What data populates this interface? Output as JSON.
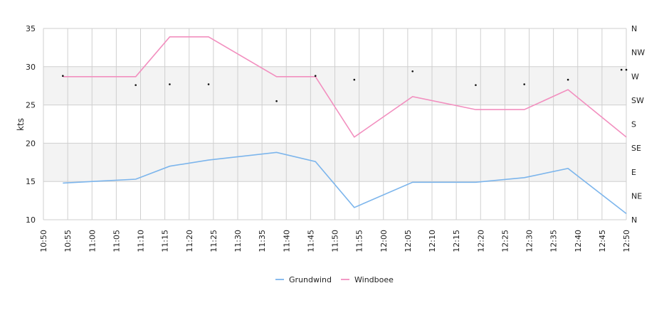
{
  "chart_data": {
    "type": "line",
    "x_labels": [
      "10:50",
      "10:55",
      "11:00",
      "11:05",
      "11:10",
      "11:15",
      "11:20",
      "11:25",
      "11:30",
      "11:35",
      "11:40",
      "11:45",
      "11:50",
      "11:55",
      "12:00",
      "12:05",
      "12:10",
      "12:15",
      "12:20",
      "12:25",
      "12:30",
      "12:35",
      "12:40",
      "12:45",
      "12:50"
    ],
    "y_label": "kts",
    "y_ticks": [
      10,
      15,
      20,
      25,
      30,
      35
    ],
    "y_lim": [
      10,
      35
    ],
    "x_lim_minutes_after_first_label": [
      0,
      120
    ],
    "right_axis_labels": [
      "N",
      "NW",
      "W",
      "SW",
      "S",
      "SE",
      "E",
      "NE",
      "N"
    ],
    "banded_ranges": [
      [
        15,
        20
      ],
      [
        25,
        30
      ]
    ],
    "x_times": [
      "10:54",
      "11:09",
      "11:16",
      "11:24",
      "11:38",
      "11:46",
      "11:54",
      "12:06",
      "12:19",
      "12:29",
      "12:38",
      "12:50"
    ],
    "series": [
      {
        "name": "Grundwind",
        "color": "#7cb5ec",
        "values": [
          14.8,
          15.3,
          17.0,
          17.8,
          18.8,
          17.6,
          11.6,
          14.9,
          14.9,
          15.5,
          16.7,
          10.8
        ]
      },
      {
        "name": "Windboee",
        "color": "#f28fbf",
        "values": [
          28.7,
          28.7,
          33.9,
          33.9,
          28.7,
          28.7,
          20.8,
          26.1,
          24.4,
          24.4,
          27.0,
          20.8
        ]
      }
    ],
    "direction_markers": {
      "x_times": [
        "10:54",
        "11:09",
        "11:16",
        "11:24",
        "11:38",
        "11:46",
        "11:54",
        "12:06",
        "12:19",
        "12:29",
        "12:38",
        "12:49",
        "12:50"
      ],
      "y_values": [
        28.8,
        27.6,
        27.7,
        27.7,
        25.5,
        28.8,
        28.3,
        29.4,
        27.6,
        27.7,
        28.3,
        29.6,
        29.6
      ]
    },
    "legend_position": "bottom-center",
    "grid": true
  }
}
